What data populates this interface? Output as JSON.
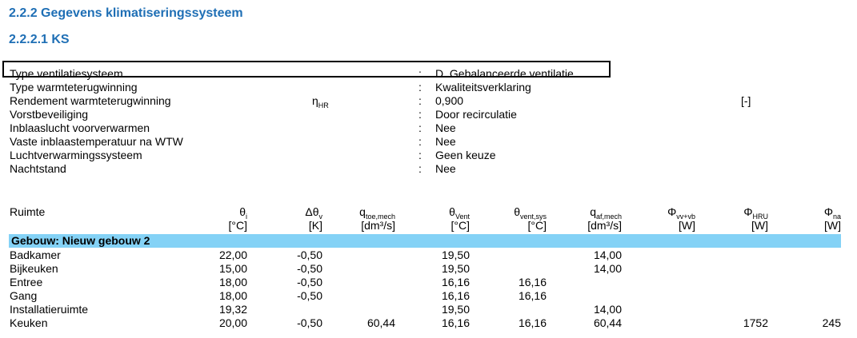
{
  "headings": {
    "section": "2.2.2 Gegevens  klimatiseringssysteem",
    "subsection": "2.2.2.1 KS"
  },
  "properties": [
    {
      "label": "Type ventilatiesysteem",
      "value": "D. Gebalanceerde ventilatie"
    },
    {
      "label": "Type warmteterugwinning",
      "value": "Kwaliteitsverklaring"
    },
    {
      "label": "Rendement warmteterugwinning",
      "symbol": "η",
      "symbol_sub": "HR",
      "value": "0,900",
      "unit": "[-]"
    },
    {
      "label": "Vorstbeveiliging",
      "value": "Door recirculatie"
    },
    {
      "label": "Inblaaslucht voorverwarmen",
      "value": "Nee"
    },
    {
      "label": "Vaste inblaastemperatuur na WTW",
      "value": "Nee"
    },
    {
      "label": "Luchtverwarmingssysteem",
      "value": "Geen keuze"
    },
    {
      "label": "Nachtstand",
      "value": "Nee"
    }
  ],
  "colon": ":",
  "table": {
    "first_header": "Ruimte",
    "columns": [
      {
        "sym": "θ",
        "sub": "i",
        "unit": "[°C]"
      },
      {
        "sym": "Δθ",
        "sub": "v",
        "unit": "[K]"
      },
      {
        "sym": "q",
        "sub": "toe,mech",
        "unit": "[dm³/s]"
      },
      {
        "sym": "θ",
        "sub": "Vent",
        "unit": "[°C]"
      },
      {
        "sym": "θ",
        "sub": "vent,sys",
        "unit": "[°C]"
      },
      {
        "sym": "q",
        "sub": "af,mech",
        "unit": "[dm³/s]"
      },
      {
        "sym": "Φ",
        "sub": "vv+vb",
        "unit": "[W]"
      },
      {
        "sym": "Φ",
        "sub": "HRU",
        "unit": "[W]"
      },
      {
        "sym": "Φ",
        "sub": "na",
        "unit": "[W]"
      }
    ],
    "group": "Gebouw: Nieuw gebouw 2",
    "rows": [
      {
        "name": "Badkamer",
        "v": [
          "22,00",
          "-0,50",
          "",
          "19,50",
          "",
          "14,00",
          "",
          "",
          ""
        ]
      },
      {
        "name": "Bijkeuken",
        "v": [
          "15,00",
          "-0,50",
          "",
          "19,50",
          "",
          "14,00",
          "",
          "",
          ""
        ]
      },
      {
        "name": "Entree",
        "v": [
          "18,00",
          "-0,50",
          "",
          "16,16",
          "16,16",
          "",
          "",
          "",
          ""
        ]
      },
      {
        "name": "Gang",
        "v": [
          "18,00",
          "-0,50",
          "",
          "16,16",
          "16,16",
          "",
          "",
          "",
          ""
        ]
      },
      {
        "name": "Installatieruimte",
        "v": [
          "19,32",
          "",
          "",
          "19,50",
          "",
          "14,00",
          "",
          "",
          ""
        ]
      },
      {
        "name": "Keuken",
        "v": [
          "20,00",
          "-0,50",
          "60,44",
          "16,16",
          "16,16",
          "60,44",
          "",
          "1752",
          "245"
        ]
      }
    ]
  }
}
